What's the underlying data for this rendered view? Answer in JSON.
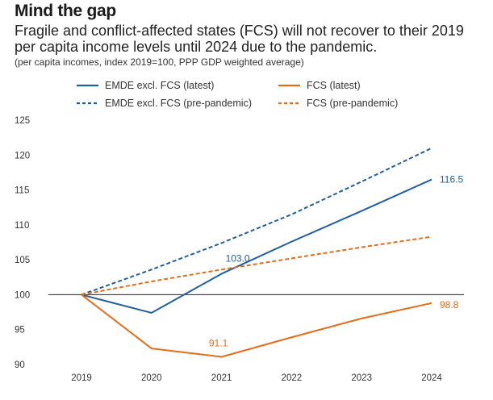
{
  "chart_data": {
    "type": "line",
    "title": "Mind the gap",
    "subtitle": "Fragile and conflict-affected states (FCS) will not recover to their 2019 per capita income levels until 2024 due to the pandemic.",
    "note": "(per capita incomes, index 2019=100, PPP GDP weighted average)",
    "x": [
      "2019",
      "2020",
      "2021",
      "2022",
      "2023",
      "2024"
    ],
    "ylim": [
      90,
      125
    ],
    "yticks": [
      90,
      95,
      100,
      105,
      110,
      115,
      120,
      125
    ],
    "reference_line": 100,
    "legend_position": "top",
    "series": [
      {
        "name": "EMDE excl. FCS (latest)",
        "values": [
          100,
          97.4,
          103.0,
          107.6,
          112.0,
          116.5
        ],
        "color": "#1f5f9e",
        "dash": "solid"
      },
      {
        "name": "EMDE excl. FCS (pre-pandemic)",
        "values": [
          100,
          103.6,
          107.4,
          111.5,
          116.2,
          121.0
        ],
        "color": "#1f5f9e",
        "dash": "dotted"
      },
      {
        "name": "FCS (latest)",
        "values": [
          100,
          92.3,
          91.1,
          93.9,
          96.6,
          98.8
        ],
        "color": "#e46c1a",
        "dash": "solid"
      },
      {
        "name": "FCS (pre-pandemic)",
        "values": [
          100,
          101.9,
          103.6,
          105.2,
          106.8,
          108.3
        ],
        "color": "#e46c1a",
        "dash": "dotted"
      }
    ],
    "data_labels": [
      {
        "text": "116.5",
        "series": 0,
        "index": 5,
        "color": "#1f5f9e"
      },
      {
        "text": "103.0",
        "series": 0,
        "index": 2,
        "color": "#1f5f9e"
      },
      {
        "text": "91.1",
        "series": 2,
        "index": 2,
        "color": "#e46c1a"
      },
      {
        "text": "98.8",
        "series": 2,
        "index": 5,
        "color": "#e46c1a"
      }
    ]
  }
}
